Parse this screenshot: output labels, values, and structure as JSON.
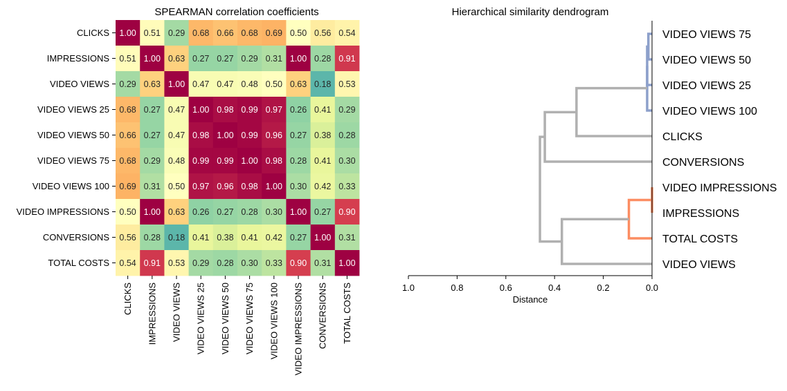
{
  "chart_data": [
    {
      "type": "heatmap",
      "title": "SPEARMAN correlation coefficients",
      "colormap": "Spectral_r",
      "value_range": [
        0,
        1
      ],
      "labels": [
        "CLICKS",
        "IMPRESSIONS",
        "VIDEO VIEWS",
        "VIDEO VIEWS 25",
        "VIDEO VIEWS 50",
        "VIDEO VIEWS 75",
        "VIDEO VIEWS 100",
        "VIDEO IMPRESSIONS",
        "CONVERSIONS",
        "TOTAL COSTS"
      ],
      "values": [
        [
          1.0,
          0.51,
          0.29,
          0.68,
          0.66,
          0.68,
          0.69,
          0.5,
          0.56,
          0.54
        ],
        [
          0.51,
          1.0,
          0.63,
          0.27,
          0.27,
          0.29,
          0.31,
          1.0,
          0.28,
          0.91
        ],
        [
          0.29,
          0.63,
          1.0,
          0.47,
          0.47,
          0.48,
          0.5,
          0.63,
          0.18,
          0.53
        ],
        [
          0.68,
          0.27,
          0.47,
          1.0,
          0.98,
          0.99,
          0.97,
          0.26,
          0.41,
          0.29
        ],
        [
          0.66,
          0.27,
          0.47,
          0.98,
          1.0,
          0.99,
          0.96,
          0.27,
          0.38,
          0.28
        ],
        [
          0.68,
          0.29,
          0.48,
          0.99,
          0.99,
          1.0,
          0.98,
          0.28,
          0.41,
          0.3
        ],
        [
          0.69,
          0.31,
          0.5,
          0.97,
          0.96,
          0.98,
          1.0,
          0.3,
          0.42,
          0.33
        ],
        [
          0.5,
          1.0,
          0.63,
          0.26,
          0.27,
          0.28,
          0.3,
          1.0,
          0.27,
          0.9
        ],
        [
          0.56,
          0.28,
          0.18,
          0.41,
          0.38,
          0.41,
          0.42,
          0.27,
          1.0,
          0.31
        ],
        [
          0.54,
          0.91,
          0.53,
          0.29,
          0.28,
          0.3,
          0.33,
          0.9,
          0.31,
          1.0
        ]
      ]
    },
    {
      "type": "dendrogram",
      "title": "Hierarchical similarity dendrogram",
      "xlabel": "Distance",
      "xlim": [
        1.0,
        0.0
      ],
      "xticks": [
        "1.0",
        "0.8",
        "0.6",
        "0.4",
        "0.2",
        "0.0"
      ],
      "xtick_values": [
        1.0,
        0.8,
        0.6,
        0.4,
        0.2,
        0.0
      ],
      "leaves": [
        "VIDEO VIEWS 75",
        "VIDEO VIEWS 50",
        "VIDEO VIEWS 25",
        "VIDEO VIEWS 100",
        "CLICKS",
        "CONVERSIONS",
        "VIDEO IMPRESSIONS",
        "IMPRESSIONS",
        "TOTAL COSTS",
        "VIDEO VIEWS"
      ],
      "merges": [
        {
          "a": "leaf:0",
          "b": "leaf:1",
          "distance": 0.015,
          "color": "#8da0cb"
        },
        {
          "a": "m:0",
          "b": "leaf:2",
          "distance": 0.02,
          "color": "#8da0cb"
        },
        {
          "a": "m:1",
          "b": "leaf:3",
          "distance": 0.02,
          "color": "#8da0cb"
        },
        {
          "a": "m:2",
          "b": "leaf:4",
          "distance": 0.31,
          "color": "#b0b0b0"
        },
        {
          "a": "m:3",
          "b": "leaf:5",
          "distance": 0.44,
          "color": "#b0b0b0"
        },
        {
          "a": "leaf:6",
          "b": "leaf:7",
          "distance": 0.0,
          "color": "#fc8d62"
        },
        {
          "a": "m:5",
          "b": "leaf:8",
          "distance": 0.095,
          "color": "#fc8d62"
        },
        {
          "a": "m:6",
          "b": "leaf:9",
          "distance": 0.37,
          "color": "#b0b0b0"
        },
        {
          "a": "m:4",
          "b": "m:7",
          "distance": 0.46,
          "color": "#b0b0b0"
        }
      ]
    }
  ]
}
